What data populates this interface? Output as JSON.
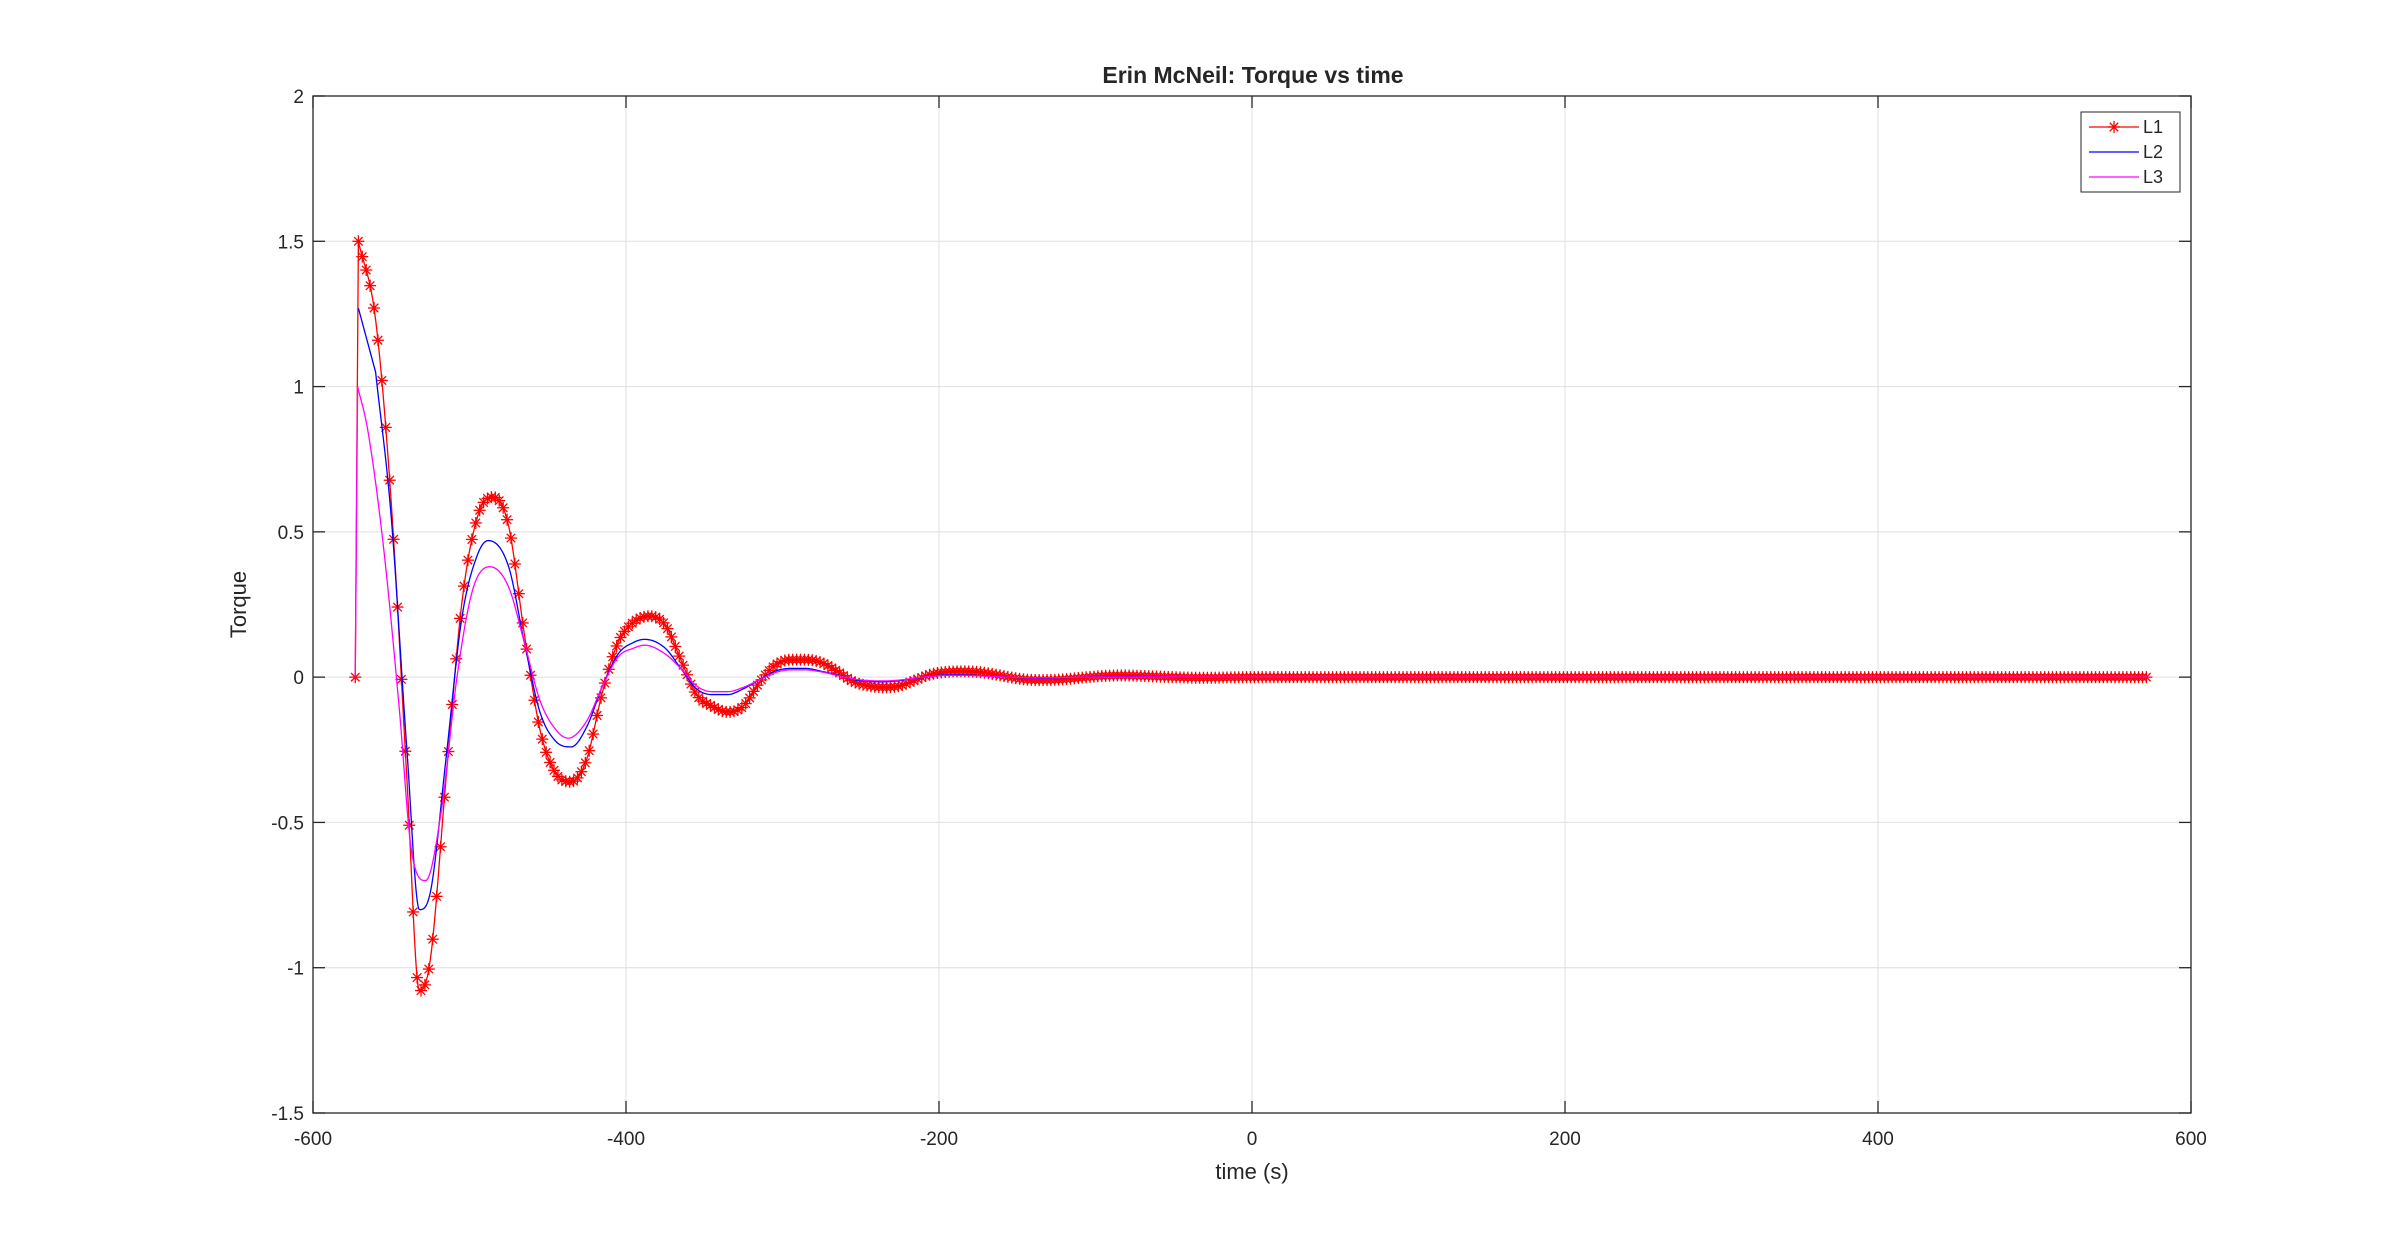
{
  "chart_data": {
    "type": "line",
    "title": "Erin McNeil: Torque vs time",
    "xlabel": "time (s)",
    "ylabel": "Torque",
    "xlim": [
      -600,
      600
    ],
    "ylim": [
      -1.5,
      2
    ],
    "xticks": [
      -600,
      -400,
      -200,
      0,
      200,
      400,
      600
    ],
    "yticks": [
      -1.5,
      -1,
      -0.5,
      0,
      0.5,
      1,
      1.5,
      2
    ],
    "xtick_labels": [
      "-600",
      "-400",
      "-200",
      "0",
      "200",
      "400",
      "600"
    ],
    "ytick_labels": [
      "-1.5",
      "-1",
      "-0.5",
      "0",
      "0.5",
      "1",
      "1.5",
      "2"
    ],
    "grid": true,
    "legend_position": "top-right",
    "series": [
      {
        "name": "L1",
        "color": "#ff0000",
        "marker": "asterisk",
        "line_style": "solid",
        "points": [
          [
            -573,
            0
          ],
          [
            -571,
            1.5
          ],
          [
            -560,
            1.23
          ],
          [
            -550,
            0.6
          ],
          [
            -540,
            -0.35
          ],
          [
            -532,
            -1.08
          ],
          [
            -525,
            -0.97
          ],
          [
            -515,
            -0.35
          ],
          [
            -505,
            0.25
          ],
          [
            -495,
            0.55
          ],
          [
            -485,
            0.62
          ],
          [
            -475,
            0.52
          ],
          [
            -465,
            0.15
          ],
          [
            -455,
            -0.18
          ],
          [
            -445,
            -0.33
          ],
          [
            -435,
            -0.36
          ],
          [
            -425,
            -0.28
          ],
          [
            -415,
            -0.05
          ],
          [
            -405,
            0.12
          ],
          [
            -395,
            0.19
          ],
          [
            -385,
            0.21
          ],
          [
            -375,
            0.18
          ],
          [
            -365,
            0.06
          ],
          [
            -355,
            -0.06
          ],
          [
            -345,
            -0.1
          ],
          [
            -335,
            -0.12
          ],
          [
            -325,
            -0.1
          ],
          [
            -315,
            -0.02
          ],
          [
            -305,
            0.04
          ],
          [
            -295,
            0.06
          ],
          [
            -285,
            0.06
          ],
          [
            -275,
            0.05
          ],
          [
            -265,
            0.02
          ],
          [
            -255,
            -0.015
          ],
          [
            -245,
            -0.03
          ],
          [
            -235,
            -0.035
          ],
          [
            -225,
            -0.03
          ],
          [
            -215,
            -0.01
          ],
          [
            -205,
            0.01
          ],
          [
            -195,
            0.018
          ],
          [
            -185,
            0.02
          ],
          [
            -175,
            0.018
          ],
          [
            -165,
            0.01
          ],
          [
            -155,
            0
          ],
          [
            -145,
            -0.008
          ],
          [
            -135,
            -0.01
          ],
          [
            -125,
            -0.009
          ],
          [
            -115,
            -0.005
          ],
          [
            -105,
            0
          ],
          [
            -95,
            0.004
          ],
          [
            -85,
            0.006
          ],
          [
            -75,
            0.005
          ],
          [
            -65,
            0.003
          ],
          [
            -55,
            0.001
          ],
          [
            -45,
            -0.001
          ],
          [
            -35,
            -0.002
          ],
          [
            -25,
            -0.002
          ],
          [
            -15,
            -0.001
          ],
          [
            0,
            0
          ],
          [
            100,
            0
          ],
          [
            200,
            0
          ],
          [
            300,
            0
          ],
          [
            400,
            0
          ],
          [
            500,
            0
          ],
          [
            573,
            0
          ]
        ]
      },
      {
        "name": "L2",
        "color": "#0000ff",
        "marker": "none",
        "line_style": "solid",
        "points": [
          [
            -571,
            1.27
          ],
          [
            -560,
            1.05
          ],
          [
            -550,
            0.55
          ],
          [
            -540,
            -0.25
          ],
          [
            -532,
            -0.8
          ],
          [
            -525,
            -0.74
          ],
          [
            -515,
            -0.28
          ],
          [
            -505,
            0.2
          ],
          [
            -495,
            0.42
          ],
          [
            -488,
            0.47
          ],
          [
            -475,
            0.38
          ],
          [
            -465,
            0.12
          ],
          [
            -455,
            -0.12
          ],
          [
            -445,
            -0.22
          ],
          [
            -435,
            -0.24
          ],
          [
            -425,
            -0.17
          ],
          [
            -415,
            -0.03
          ],
          [
            -405,
            0.08
          ],
          [
            -395,
            0.12
          ],
          [
            -388,
            0.13
          ],
          [
            -375,
            0.1
          ],
          [
            -365,
            0.03
          ],
          [
            -355,
            -0.04
          ],
          [
            -345,
            -0.06
          ],
          [
            -335,
            -0.06
          ],
          [
            -325,
            -0.04
          ],
          [
            -315,
            -0.01
          ],
          [
            -305,
            0.02
          ],
          [
            -295,
            0.03
          ],
          [
            -285,
            0.03
          ],
          [
            -275,
            0.02
          ],
          [
            -265,
            0.008
          ],
          [
            -255,
            -0.008
          ],
          [
            -245,
            -0.015
          ],
          [
            -235,
            -0.016
          ],
          [
            -225,
            -0.012
          ],
          [
            -215,
            -0.004
          ],
          [
            -205,
            0.004
          ],
          [
            -195,
            0.008
          ],
          [
            -185,
            0.008
          ],
          [
            -175,
            0.006
          ],
          [
            -165,
            0.003
          ],
          [
            -155,
            0
          ],
          [
            -145,
            -0.003
          ],
          [
            -135,
            -0.004
          ],
          [
            -125,
            -0.003
          ],
          [
            -115,
            -0.001
          ],
          [
            -100,
            0.001
          ],
          [
            -80,
            0.002
          ],
          [
            -60,
            0.001
          ],
          [
            -40,
            0
          ],
          [
            0,
            0
          ],
          [
            200,
            0
          ],
          [
            400,
            0
          ],
          [
            573,
            0
          ]
        ]
      },
      {
        "name": "L3",
        "color": "#ff00ff",
        "marker": "none",
        "line_style": "solid",
        "points": [
          [
            -573,
            0
          ],
          [
            -571.5,
            1.0
          ],
          [
            -565,
            0.85
          ],
          [
            -555,
            0.45
          ],
          [
            -545,
            -0.1
          ],
          [
            -537,
            -0.6
          ],
          [
            -528,
            -0.7
          ],
          [
            -518,
            -0.46
          ],
          [
            -508,
            0
          ],
          [
            -498,
            0.3
          ],
          [
            -487,
            0.38
          ],
          [
            -475,
            0.31
          ],
          [
            -465,
            0.12
          ],
          [
            -455,
            -0.08
          ],
          [
            -445,
            -0.18
          ],
          [
            -437,
            -0.21
          ],
          [
            -425,
            -0.15
          ],
          [
            -415,
            -0.03
          ],
          [
            -405,
            0.07
          ],
          [
            -395,
            0.1
          ],
          [
            -388,
            0.11
          ],
          [
            -375,
            0.08
          ],
          [
            -365,
            0.03
          ],
          [
            -355,
            -0.03
          ],
          [
            -345,
            -0.05
          ],
          [
            -335,
            -0.05
          ],
          [
            -325,
            -0.035
          ],
          [
            -315,
            -0.01
          ],
          [
            -305,
            0.015
          ],
          [
            -295,
            0.025
          ],
          [
            -285,
            0.025
          ],
          [
            -275,
            0.018
          ],
          [
            -265,
            0.006
          ],
          [
            -255,
            -0.006
          ],
          [
            -245,
            -0.012
          ],
          [
            -235,
            -0.013
          ],
          [
            -225,
            -0.01
          ],
          [
            -215,
            -0.003
          ],
          [
            -205,
            0.003
          ],
          [
            -195,
            0.006
          ],
          [
            -185,
            0.006
          ],
          [
            -175,
            0.005
          ],
          [
            -165,
            0.002
          ],
          [
            -155,
            0
          ],
          [
            -145,
            -0.002
          ],
          [
            -135,
            -0.003
          ],
          [
            -125,
            -0.002
          ],
          [
            -110,
            0
          ],
          [
            -90,
            0.001
          ],
          [
            -60,
            0.001
          ],
          [
            -30,
            0
          ],
          [
            0,
            0
          ],
          [
            200,
            0
          ],
          [
            400,
            0
          ],
          [
            573,
            0
          ]
        ]
      }
    ]
  }
}
